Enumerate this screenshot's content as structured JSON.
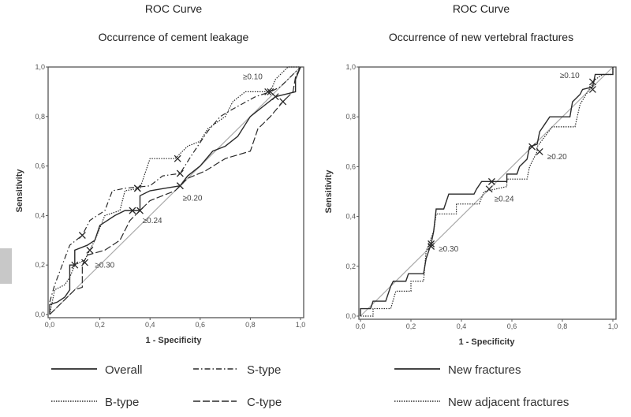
{
  "chart_data": [
    {
      "type": "line",
      "title": "ROC Curve",
      "subtitle": "Occurrence of cement leakage",
      "xlabel": "1 - Specificity",
      "ylabel": "Sensitivity",
      "xlim": [
        0,
        1
      ],
      "ylim": [
        0,
        1
      ],
      "xticks": [
        "0,0",
        "0,2",
        "0,4",
        "0,6",
        "0,8",
        "1,0"
      ],
      "yticks": [
        "0,0",
        "0,2",
        "0,4",
        "0,6",
        "0,8",
        "1,0"
      ],
      "reference_line": "diagonal",
      "grid": false,
      "legend_position": "bottom",
      "series": [
        {
          "name": "Overall",
          "style": "solid",
          "points": [
            [
              0,
              0
            ],
            [
              0,
              0.04
            ],
            [
              0.03,
              0.05
            ],
            [
              0.06,
              0.07
            ],
            [
              0.08,
              0.1
            ],
            [
              0.08,
              0.2
            ],
            [
              0.1,
              0.2
            ],
            [
              0.1,
              0.26
            ],
            [
              0.15,
              0.28
            ],
            [
              0.18,
              0.3
            ],
            [
              0.2,
              0.36
            ],
            [
              0.26,
              0.4
            ],
            [
              0.3,
              0.42
            ],
            [
              0.36,
              0.42
            ],
            [
              0.36,
              0.48
            ],
            [
              0.4,
              0.5
            ],
            [
              0.46,
              0.51
            ],
            [
              0.52,
              0.52
            ],
            [
              0.55,
              0.56
            ],
            [
              0.6,
              0.6
            ],
            [
              0.65,
              0.66
            ],
            [
              0.7,
              0.68
            ],
            [
              0.75,
              0.72
            ],
            [
              0.8,
              0.8
            ],
            [
              0.85,
              0.84
            ],
            [
              0.9,
              0.88
            ],
            [
              0.98,
              0.9
            ],
            [
              0.98,
              0.95
            ],
            [
              1,
              1
            ]
          ],
          "markers": [
            [
              0.1,
              0.2
            ],
            [
              0.33,
              0.42
            ],
            [
              0.52,
              0.52
            ],
            [
              0.9,
              0.88
            ]
          ]
        },
        {
          "name": "S-type",
          "style": "dashdot",
          "points": [
            [
              0,
              0.05
            ],
            [
              0.02,
              0.12
            ],
            [
              0.05,
              0.2
            ],
            [
              0.08,
              0.28
            ],
            [
              0.13,
              0.32
            ],
            [
              0.16,
              0.38
            ],
            [
              0.22,
              0.42
            ],
            [
              0.25,
              0.5
            ],
            [
              0.3,
              0.51
            ],
            [
              0.4,
              0.52
            ],
            [
              0.45,
              0.56
            ],
            [
              0.52,
              0.57
            ],
            [
              0.57,
              0.65
            ],
            [
              0.63,
              0.74
            ],
            [
              0.68,
              0.8
            ],
            [
              0.73,
              0.83
            ],
            [
              0.82,
              0.88
            ],
            [
              0.88,
              0.9
            ],
            [
              0.92,
              0.92
            ],
            [
              0.98,
              0.98
            ],
            [
              1,
              1
            ]
          ],
          "markers": [
            [
              0.13,
              0.32
            ],
            [
              0.35,
              0.51
            ],
            [
              0.52,
              0.57
            ],
            [
              0.88,
              0.9
            ]
          ]
        },
        {
          "name": "B-type",
          "style": "dotted",
          "points": [
            [
              0,
              0
            ],
            [
              0.02,
              0.1
            ],
            [
              0.06,
              0.12
            ],
            [
              0.08,
              0.15
            ],
            [
              0.1,
              0.2
            ],
            [
              0.14,
              0.22
            ],
            [
              0.18,
              0.3
            ],
            [
              0.22,
              0.4
            ],
            [
              0.28,
              0.42
            ],
            [
              0.3,
              0.5
            ],
            [
              0.36,
              0.51
            ],
            [
              0.4,
              0.63
            ],
            [
              0.5,
              0.63
            ],
            [
              0.55,
              0.68
            ],
            [
              0.6,
              0.7
            ],
            [
              0.63,
              0.75
            ],
            [
              0.7,
              0.8
            ],
            [
              0.73,
              0.86
            ],
            [
              0.78,
              0.9
            ],
            [
              0.88,
              0.9
            ],
            [
              0.9,
              0.95
            ],
            [
              0.95,
              1
            ],
            [
              1,
              1
            ]
          ],
          "markers": [
            [
              0.16,
              0.26
            ],
            [
              0.35,
              0.51
            ],
            [
              0.51,
              0.63
            ],
            [
              0.87,
              0.9
            ]
          ]
        },
        {
          "name": "C-type",
          "style": "longdash",
          "points": [
            [
              0,
              0
            ],
            [
              0.05,
              0.05
            ],
            [
              0.1,
              0.1
            ],
            [
              0.13,
              0.11
            ],
            [
              0.13,
              0.2
            ],
            [
              0.15,
              0.24
            ],
            [
              0.22,
              0.26
            ],
            [
              0.28,
              0.3
            ],
            [
              0.32,
              0.38
            ],
            [
              0.36,
              0.42
            ],
            [
              0.4,
              0.46
            ],
            [
              0.5,
              0.5
            ],
            [
              0.55,
              0.55
            ],
            [
              0.62,
              0.58
            ],
            [
              0.7,
              0.63
            ],
            [
              0.8,
              0.66
            ],
            [
              0.83,
              0.75
            ],
            [
              0.88,
              0.8
            ],
            [
              0.93,
              0.86
            ],
            [
              0.97,
              0.9
            ],
            [
              0.98,
              0.96
            ],
            [
              1,
              1
            ]
          ],
          "markers": [
            [
              0.14,
              0.21
            ],
            [
              0.36,
              0.42
            ],
            [
              0.52,
              0.52
            ],
            [
              0.93,
              0.86
            ]
          ]
        }
      ],
      "annotations": [
        {
          "text": "≥0.10",
          "x": 0.77,
          "y": 0.95
        },
        {
          "text": "≥0.20",
          "x": 0.53,
          "y": 0.46
        },
        {
          "text": "≥0.24",
          "x": 0.37,
          "y": 0.37
        },
        {
          "text": "≥0.30",
          "x": 0.18,
          "y": 0.19
        }
      ]
    },
    {
      "type": "line",
      "title": "ROC Curve",
      "subtitle": "Occurrence of new vertebral fractures",
      "xlabel": "1 - Specificity",
      "ylabel": "Sensitivity",
      "xlim": [
        0,
        1
      ],
      "ylim": [
        0,
        1
      ],
      "xticks": [
        "0,0",
        "0,2",
        "0,4",
        "0,6",
        "0,8",
        "1,0"
      ],
      "yticks": [
        "0,0",
        "0,2",
        "0,4",
        "0,6",
        "0,8",
        "1,0"
      ],
      "reference_line": "diagonal",
      "grid": false,
      "legend_position": "bottom",
      "series": [
        {
          "name": "New fractures",
          "style": "solid",
          "points": [
            [
              0,
              0
            ],
            [
              0,
              0.03
            ],
            [
              0.04,
              0.03
            ],
            [
              0.05,
              0.06
            ],
            [
              0.1,
              0.06
            ],
            [
              0.12,
              0.12
            ],
            [
              0.13,
              0.14
            ],
            [
              0.18,
              0.14
            ],
            [
              0.19,
              0.17
            ],
            [
              0.25,
              0.17
            ],
            [
              0.26,
              0.23
            ],
            [
              0.28,
              0.29
            ],
            [
              0.29,
              0.34
            ],
            [
              0.3,
              0.43
            ],
            [
              0.33,
              0.43
            ],
            [
              0.34,
              0.46
            ],
            [
              0.35,
              0.49
            ],
            [
              0.45,
              0.49
            ],
            [
              0.46,
              0.51
            ],
            [
              0.48,
              0.54
            ],
            [
              0.58,
              0.54
            ],
            [
              0.58,
              0.57
            ],
            [
              0.62,
              0.57
            ],
            [
              0.63,
              0.6
            ],
            [
              0.66,
              0.63
            ],
            [
              0.67,
              0.68
            ],
            [
              0.7,
              0.69
            ],
            [
              0.71,
              0.74
            ],
            [
              0.73,
              0.77
            ],
            [
              0.75,
              0.8
            ],
            [
              0.83,
              0.8
            ],
            [
              0.84,
              0.86
            ],
            [
              0.87,
              0.89
            ],
            [
              0.88,
              0.91
            ],
            [
              0.92,
              0.92
            ],
            [
              0.93,
              0.97
            ],
            [
              1,
              0.97
            ],
            [
              1,
              1
            ]
          ],
          "markers": [
            [
              0.28,
              0.29
            ],
            [
              0.52,
              0.54
            ],
            [
              0.68,
              0.68
            ],
            [
              0.92,
              0.94
            ]
          ]
        },
        {
          "name": "New adjacent fractures",
          "style": "dotted",
          "points": [
            [
              0,
              0
            ],
            [
              0.05,
              0
            ],
            [
              0.05,
              0.03
            ],
            [
              0.12,
              0.03
            ],
            [
              0.14,
              0.1
            ],
            [
              0.2,
              0.1
            ],
            [
              0.2,
              0.14
            ],
            [
              0.25,
              0.14
            ],
            [
              0.26,
              0.26
            ],
            [
              0.29,
              0.34
            ],
            [
              0.3,
              0.41
            ],
            [
              0.38,
              0.41
            ],
            [
              0.38,
              0.45
            ],
            [
              0.47,
              0.45
            ],
            [
              0.49,
              0.5
            ],
            [
              0.58,
              0.52
            ],
            [
              0.58,
              0.55
            ],
            [
              0.66,
              0.55
            ],
            [
              0.67,
              0.6
            ],
            [
              0.7,
              0.66
            ],
            [
              0.7,
              0.68
            ],
            [
              0.76,
              0.76
            ],
            [
              0.85,
              0.76
            ],
            [
              0.87,
              0.85
            ],
            [
              0.9,
              0.9
            ],
            [
              0.93,
              0.95
            ],
            [
              0.96,
              0.97
            ],
            [
              1,
              0.97
            ],
            [
              1,
              1
            ]
          ],
          "markers": [
            [
              0.28,
              0.28
            ],
            [
              0.51,
              0.51
            ],
            [
              0.71,
              0.66
            ],
            [
              0.92,
              0.91
            ]
          ]
        }
      ],
      "annotations": [
        {
          "text": "≥0.10",
          "x": 0.79,
          "y": 0.955
        },
        {
          "text": "≥0.20",
          "x": 0.74,
          "y": 0.63
        },
        {
          "text": "≥0.24",
          "x": 0.53,
          "y": 0.46
        },
        {
          "text": "≥0.30",
          "x": 0.31,
          "y": 0.26
        }
      ]
    }
  ],
  "colors": {
    "series": "#2a2a2a",
    "reference": "#aaaaaa",
    "frame": "#555555"
  }
}
